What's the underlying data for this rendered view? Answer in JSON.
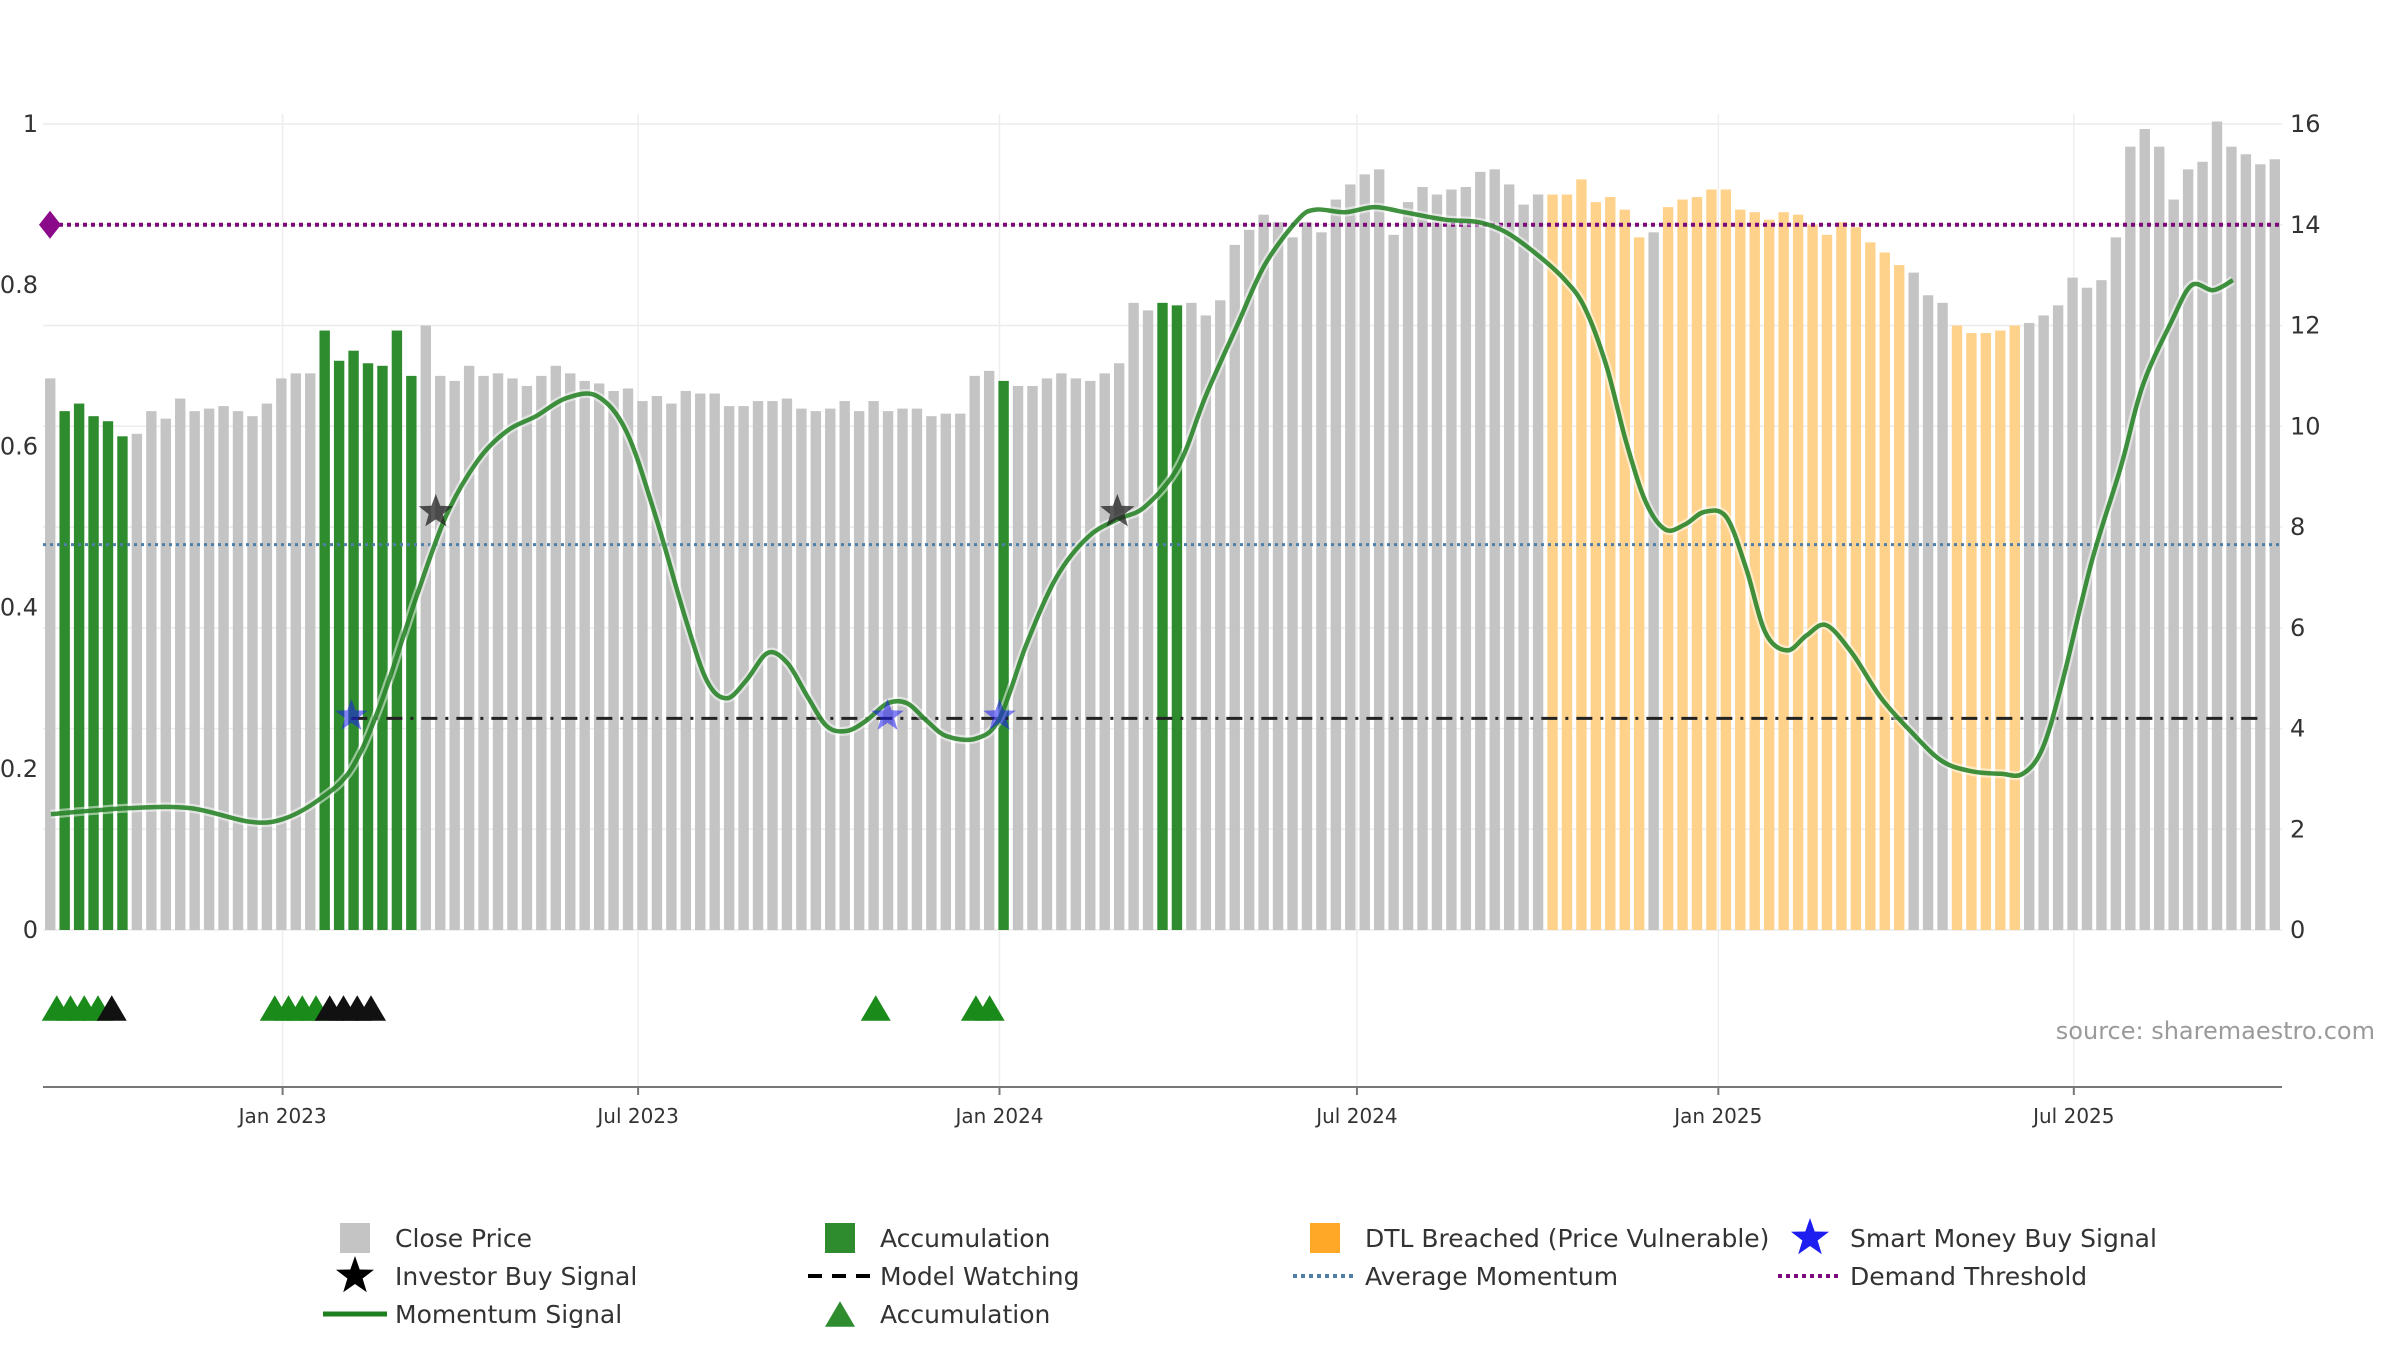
{
  "chart_data": {
    "type": "bar",
    "source_label": "source: sharemaestro.com",
    "y_left": {
      "ticks": [
        "0",
        "0.2",
        "0.4",
        "0.6",
        "0.8",
        "1"
      ],
      "range": [
        0,
        1
      ]
    },
    "y_right": {
      "ticks": [
        "0",
        "2",
        "4",
        "6",
        "8",
        "10",
        "12",
        "14",
        "16"
      ],
      "range": [
        0,
        16
      ]
    },
    "x_axis": {
      "start": "2022-09-01",
      "end": "2025-10-15",
      "ticks": [
        {
          "label": "Jan 2023",
          "date": "2023-01-01"
        },
        {
          "label": "Jul 2023",
          "date": "2023-07-01"
        },
        {
          "label": "Jan 2024",
          "date": "2024-01-01"
        },
        {
          "label": "Jul 2024",
          "date": "2024-07-01"
        },
        {
          "label": "Jan 2025",
          "date": "2025-01-01"
        },
        {
          "label": "Jul 2025",
          "date": "2025-07-01"
        }
      ]
    },
    "colors": {
      "close": "#c4c4c4",
      "accumulation": "#2e8b2e",
      "dtl": "#ffd28c",
      "momentum": "#1e7f1e",
      "smart_money": "#1e1ef0",
      "investor": "#222222",
      "model_watching": "#222222",
      "average_momentum": "#4f7fa8",
      "demand_threshold": "#7b0a7b"
    },
    "bar_states_key": {
      "g": "Close Price",
      "a": "Accumulation",
      "d": "DTL Breached (Price Vulnerable)"
    },
    "bars": {
      "values": [
        10.95,
        10.3,
        10.45,
        10.2,
        10.1,
        9.8,
        9.85,
        10.3,
        10.15,
        10.55,
        10.3,
        10.35,
        10.4,
        10.3,
        10.2,
        10.45,
        10.95,
        11.05,
        11.05,
        11.9,
        11.3,
        11.5,
        11.25,
        11.2,
        11.9,
        11.0,
        12.0,
        11.0,
        10.9,
        11.2,
        11.0,
        11.05,
        10.95,
        10.8,
        11.0,
        11.2,
        11.05,
        10.9,
        10.85,
        10.7,
        10.75,
        10.5,
        10.6,
        10.45,
        10.7,
        10.65,
        10.65,
        10.4,
        10.4,
        10.5,
        10.5,
        10.55,
        10.35,
        10.3,
        10.35,
        10.5,
        10.3,
        10.5,
        10.3,
        10.35,
        10.35,
        10.2,
        10.25,
        10.25,
        11.0,
        11.1,
        10.9,
        10.8,
        10.8,
        10.95,
        11.05,
        10.95,
        10.9,
        11.05,
        11.25,
        12.45,
        12.3,
        12.45,
        12.4,
        12.45,
        12.2,
        12.5,
        13.6,
        13.9,
        14.2,
        14.05,
        13.75,
        14.05,
        13.85,
        14.5,
        14.8,
        15.0,
        15.1,
        13.8,
        14.45,
        14.75,
        14.6,
        14.7,
        14.75,
        15.05,
        15.1,
        14.8,
        14.4,
        14.6,
        14.6,
        14.6,
        14.9,
        14.45,
        14.55,
        14.3,
        13.75,
        13.85,
        14.35,
        14.5,
        14.55,
        14.7,
        14.7,
        14.3,
        14.25,
        14.1,
        14.25,
        14.2,
        14.0,
        13.8,
        14.05,
        13.95,
        13.65,
        13.45,
        13.2,
        13.05,
        12.6,
        12.45,
        12.0,
        11.85,
        11.85,
        11.9,
        12.0,
        12.05,
        12.2,
        12.4,
        12.95,
        12.75,
        12.9,
        13.75,
        15.55,
        15.9,
        15.55,
        14.5,
        15.1,
        15.25,
        16.05,
        15.55,
        15.4,
        15.2,
        15.3
      ],
      "states": "gaaaaagggggggggggggaaaaaaaggggggggggggggggggggggggggggggggggggggggaggggggggggaagggggggggggggggggggggggggdddddddgdddddddddddddddddgggdddddgggggggggggggggggggggggggggggggdddddddddddd"
    },
    "series": [
      {
        "name": "Momentum Signal",
        "y_axis": "right",
        "points": [
          [
            "2022-09-05",
            2.3
          ],
          [
            "2022-10-15",
            2.42
          ],
          [
            "2022-11-15",
            2.42
          ],
          [
            "2022-12-15",
            2.15
          ],
          [
            "2023-01-01",
            2.2
          ],
          [
            "2023-01-20",
            2.6
          ],
          [
            "2023-02-05",
            3.2
          ],
          [
            "2023-02-20",
            4.5
          ],
          [
            "2023-03-10",
            6.6
          ],
          [
            "2023-03-25",
            8.2
          ],
          [
            "2023-04-10",
            9.3
          ],
          [
            "2023-04-25",
            9.9
          ],
          [
            "2023-05-10",
            10.2
          ],
          [
            "2023-05-25",
            10.55
          ],
          [
            "2023-06-10",
            10.6
          ],
          [
            "2023-06-25",
            9.9
          ],
          [
            "2023-07-10",
            8.2
          ],
          [
            "2023-07-25",
            6.2
          ],
          [
            "2023-08-05",
            4.95
          ],
          [
            "2023-08-15",
            4.6
          ],
          [
            "2023-08-25",
            4.95
          ],
          [
            "2023-09-05",
            5.5
          ],
          [
            "2023-09-15",
            5.3
          ],
          [
            "2023-09-25",
            4.65
          ],
          [
            "2023-10-05",
            4.05
          ],
          [
            "2023-10-15",
            3.95
          ],
          [
            "2023-10-25",
            4.15
          ],
          [
            "2023-11-05",
            4.5
          ],
          [
            "2023-11-15",
            4.5
          ],
          [
            "2023-11-25",
            4.15
          ],
          [
            "2023-12-05",
            3.85
          ],
          [
            "2023-12-20",
            3.8
          ],
          [
            "2024-01-01",
            4.2
          ],
          [
            "2024-01-15",
            5.7
          ],
          [
            "2024-01-30",
            7.0
          ],
          [
            "2024-02-15",
            7.8
          ],
          [
            "2024-03-01",
            8.15
          ],
          [
            "2024-03-15",
            8.4
          ],
          [
            "2024-04-01",
            9.2
          ],
          [
            "2024-04-15",
            10.6
          ],
          [
            "2024-05-01",
            12.0
          ],
          [
            "2024-05-15",
            13.2
          ],
          [
            "2024-06-01",
            14.1
          ],
          [
            "2024-06-10",
            14.3
          ],
          [
            "2024-06-25",
            14.25
          ],
          [
            "2024-07-10",
            14.35
          ],
          [
            "2024-07-25",
            14.25
          ],
          [
            "2024-08-15",
            14.1
          ],
          [
            "2024-09-01",
            14.05
          ],
          [
            "2024-09-15",
            13.85
          ],
          [
            "2024-10-01",
            13.4
          ],
          [
            "2024-10-15",
            12.9
          ],
          [
            "2024-10-25",
            12.35
          ],
          [
            "2024-11-05",
            11.2
          ],
          [
            "2024-11-15",
            9.7
          ],
          [
            "2024-11-25",
            8.5
          ],
          [
            "2024-12-05",
            7.95
          ],
          [
            "2024-12-15",
            8.05
          ],
          [
            "2024-12-25",
            8.3
          ],
          [
            "2025-01-05",
            8.2
          ],
          [
            "2025-01-15",
            7.2
          ],
          [
            "2025-01-25",
            5.9
          ],
          [
            "2025-02-05",
            5.55
          ],
          [
            "2025-02-15",
            5.85
          ],
          [
            "2025-02-25",
            6.05
          ],
          [
            "2025-03-10",
            5.5
          ],
          [
            "2025-03-25",
            4.6
          ],
          [
            "2025-04-10",
            3.9
          ],
          [
            "2025-04-25",
            3.35
          ],
          [
            "2025-05-10",
            3.15
          ],
          [
            "2025-05-25",
            3.1
          ],
          [
            "2025-06-05",
            3.1
          ],
          [
            "2025-06-15",
            3.6
          ],
          [
            "2025-06-25",
            4.9
          ],
          [
            "2025-07-10",
            7.3
          ],
          [
            "2025-07-25",
            9.2
          ],
          [
            "2025-08-05",
            10.8
          ],
          [
            "2025-08-20",
            12.1
          ],
          [
            "2025-08-30",
            12.8
          ],
          [
            "2025-09-10",
            12.7
          ],
          [
            "2025-09-20",
            12.9
          ]
        ]
      },
      {
        "name": "Average Momentum",
        "y_axis": "right",
        "value": 7.65
      },
      {
        "name": "Demand Threshold",
        "y_axis": "right",
        "value": 14.0
      },
      {
        "name": "Model Watching",
        "y_axis": "right",
        "value": 4.2,
        "from": "2023-02-05",
        "to": "2025-10-05"
      },
      {
        "name": "Smart Money Buy Signal",
        "y_axis": "right",
        "points": [
          [
            "2023-02-05",
            4.25
          ],
          [
            "2023-11-05",
            4.25
          ],
          [
            "2024-01-01",
            4.25
          ]
        ]
      },
      {
        "name": "Investor Buy Signal",
        "y_axis": "right",
        "points": [
          [
            "2023-03-20",
            8.3
          ],
          [
            "2024-03-01",
            8.3
          ]
        ]
      }
    ],
    "accumulation_markers": [
      {
        "date": "2022-09-08",
        "kind": "accumulation"
      },
      {
        "date": "2022-09-15",
        "kind": "accumulation"
      },
      {
        "date": "2022-09-22",
        "kind": "accumulation"
      },
      {
        "date": "2022-09-29",
        "kind": "accumulation"
      },
      {
        "date": "2022-10-06",
        "kind": "investor"
      },
      {
        "date": "2022-12-28",
        "kind": "accumulation"
      },
      {
        "date": "2023-01-04",
        "kind": "accumulation"
      },
      {
        "date": "2023-01-11",
        "kind": "accumulation"
      },
      {
        "date": "2023-01-18",
        "kind": "accumulation"
      },
      {
        "date": "2023-01-25",
        "kind": "investor"
      },
      {
        "date": "2023-02-01",
        "kind": "investor"
      },
      {
        "date": "2023-02-08",
        "kind": "investor"
      },
      {
        "date": "2023-02-15",
        "kind": "investor"
      },
      {
        "date": "2023-10-30",
        "kind": "accumulation"
      },
      {
        "date": "2023-12-20",
        "kind": "accumulation"
      },
      {
        "date": "2023-12-27",
        "kind": "accumulation"
      }
    ],
    "legend": {
      "placement": "bottom",
      "items": [
        {
          "label": "Close Price",
          "symbol": "square",
          "color": "#c4c4c4"
        },
        {
          "label": "Accumulation",
          "symbol": "square",
          "color": "#2e8b2e"
        },
        {
          "label": "DTL Breached (Price Vulnerable)",
          "symbol": "square",
          "color": "#ffa726"
        },
        {
          "label": "Smart Money Buy Signal",
          "symbol": "star",
          "color": "#1e1ef0"
        },
        {
          "label": "Investor Buy Signal",
          "symbol": "star",
          "color": "#000000"
        },
        {
          "label": "Model Watching",
          "symbol": "dash",
          "color": "#000000"
        },
        {
          "label": "Average Momentum",
          "symbol": "dot",
          "color": "#4f7fa8"
        },
        {
          "label": "Demand Threshold",
          "symbol": "dot",
          "color": "#7b0a7b"
        },
        {
          "label": "Momentum Signal",
          "symbol": "line",
          "color": "#1e7f1e"
        },
        {
          "label": "Accumulation",
          "symbol": "triangle",
          "color": "#2e8b2e"
        }
      ]
    }
  }
}
